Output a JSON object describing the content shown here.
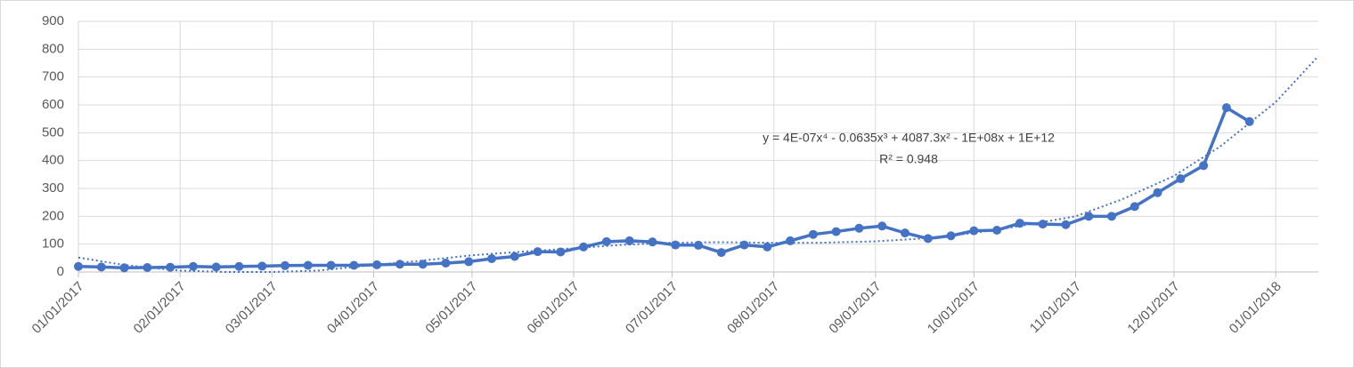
{
  "chart_data": {
    "type": "line",
    "x": [
      "01/01/2017",
      "01/08/2017",
      "01/15/2017",
      "01/22/2017",
      "01/29/2017",
      "02/05/2017",
      "02/12/2017",
      "02/19/2017",
      "02/26/2017",
      "03/05/2017",
      "03/12/2017",
      "03/19/2017",
      "03/26/2017",
      "04/02/2017",
      "04/09/2017",
      "04/16/2017",
      "04/23/2017",
      "04/30/2017",
      "05/07/2017",
      "05/14/2017",
      "05/21/2017",
      "05/28/2017",
      "06/04/2017",
      "06/11/2017",
      "06/18/2017",
      "06/25/2017",
      "07/02/2017",
      "07/09/2017",
      "07/16/2017",
      "07/23/2017",
      "07/30/2017",
      "08/06/2017",
      "08/13/2017",
      "08/20/2017",
      "08/27/2017",
      "09/03/2017",
      "09/10/2017",
      "09/17/2017",
      "09/24/2017",
      "10/01/2017",
      "10/08/2017",
      "10/15/2017",
      "10/22/2017",
      "10/29/2017",
      "11/05/2017",
      "11/12/2017",
      "11/19/2017",
      "11/26/2017",
      "12/03/2017",
      "12/10/2017",
      "12/17/2017",
      "12/24/2017"
    ],
    "series": [
      {
        "color": "#4472c4",
        "values": [
          20,
          18,
          15,
          16,
          17,
          20,
          18,
          20,
          21,
          23,
          24,
          24,
          24,
          26,
          28,
          28,
          32,
          37,
          48,
          56,
          73,
          72,
          90,
          109,
          112,
          108,
          97,
          96,
          70,
          97,
          90,
          112,
          135,
          145,
          157,
          165,
          140,
          120,
          130,
          148,
          150,
          175,
          172,
          170,
          200,
          200,
          235,
          285,
          335,
          382,
          590,
          540
        ]
      }
    ],
    "trendline": {
      "color": "#4472c4",
      "x": [
        "01/01/2017",
        "01/15/2017",
        "02/01/2017",
        "02/15/2017",
        "03/01/2017",
        "03/15/2017",
        "04/01/2017",
        "04/15/2017",
        "05/01/2017",
        "05/15/2017",
        "06/01/2017",
        "06/15/2017",
        "07/01/2017",
        "07/15/2017",
        "08/01/2017",
        "08/15/2017",
        "09/01/2017",
        "09/15/2017",
        "10/01/2017",
        "10/15/2017",
        "11/01/2017",
        "11/15/2017",
        "12/01/2017",
        "12/15/2017",
        "01/01/2018",
        "01/14/2018"
      ],
      "values": [
        52,
        25,
        5,
        0,
        0,
        5,
        25,
        40,
        60,
        72,
        85,
        97,
        105,
        107,
        105,
        105,
        110,
        120,
        140,
        165,
        200,
        260,
        345,
        450,
        610,
        775
      ]
    },
    "annotations": [
      "y = 4E-07x⁴ - 0.0635x³ + 4087.3x² - 1E+08x + 1E+12",
      "R² = 0.948"
    ],
    "xlim": [
      "01/01/2017",
      "01/14/2018"
    ],
    "xticks": [
      "01/01/2017",
      "02/01/2017",
      "03/01/2017",
      "04/01/2017",
      "05/01/2017",
      "06/01/2017",
      "07/01/2017",
      "08/01/2017",
      "09/01/2017",
      "10/01/2017",
      "11/01/2017",
      "12/01/2017",
      "01/01/2018"
    ],
    "ylim": [
      0,
      900
    ],
    "yticks": [
      0,
      100,
      200,
      300,
      400,
      500,
      600,
      700,
      800,
      900
    ],
    "grid": true
  }
}
